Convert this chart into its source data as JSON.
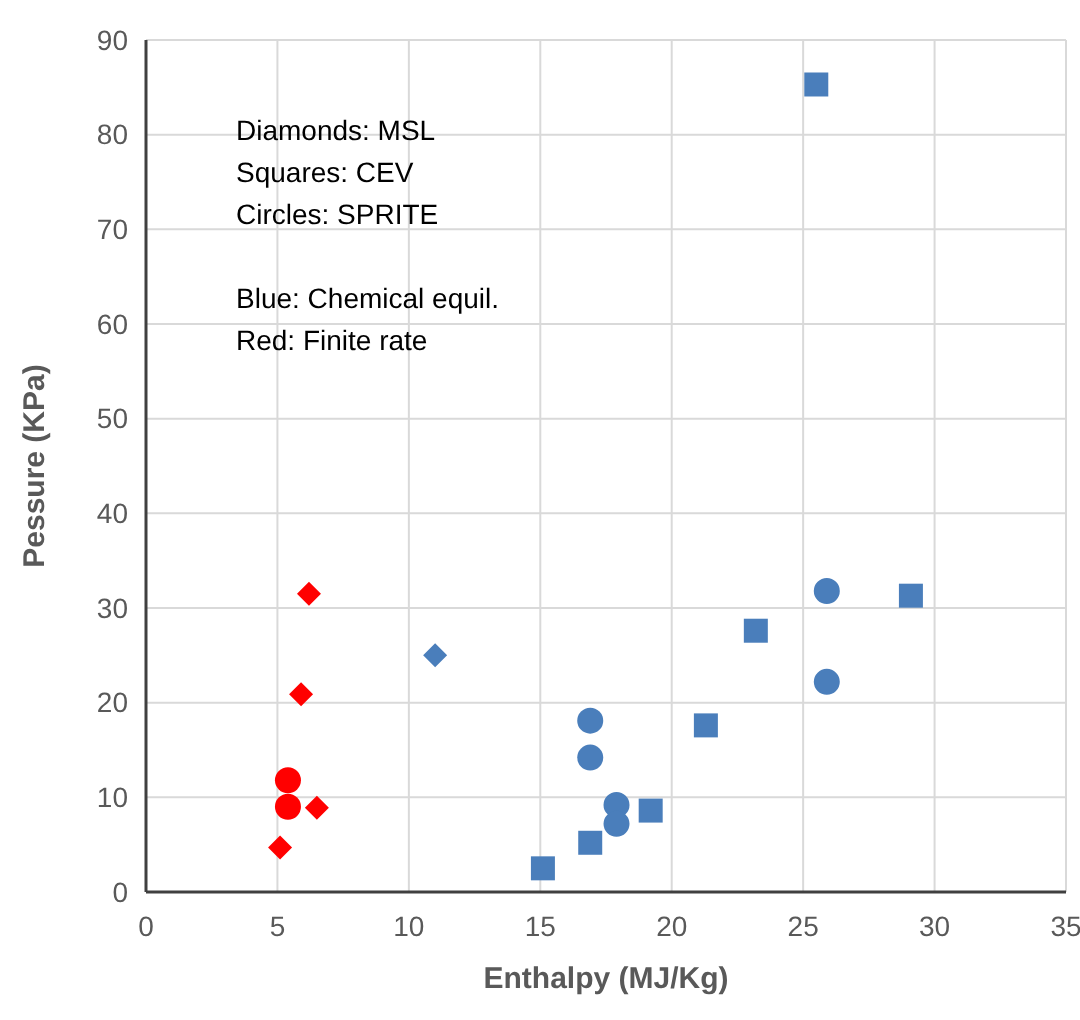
{
  "chart_data": {
    "type": "scatter",
    "xlabel": "Enthalpy (MJ/Kg)",
    "ylabel": "Pessure (KPa)",
    "xlim": [
      0,
      35
    ],
    "xticks": [
      0,
      5,
      10,
      15,
      20,
      25,
      30,
      35
    ],
    "ylim": [
      0,
      90
    ],
    "yticks": [
      0,
      10,
      20,
      30,
      40,
      50,
      60,
      70,
      80,
      90
    ],
    "grid": true,
    "annotations": [
      "Diamonds: MSL\nSquares: CEV\nCircles: SPRITE",
      "Blue: Chemical equil.\nRed: Finite rate"
    ],
    "series": [
      {
        "color": "#ff0000",
        "marker": "diamond",
        "x": [
          6.2,
          5.9,
          6.5,
          5.1
        ],
        "values": [
          31.5,
          20.9,
          8.9,
          4.7
        ]
      },
      {
        "color": "#ff0000",
        "marker": "circle",
        "x": [
          5.4,
          5.4
        ],
        "values": [
          11.8,
          9.0
        ]
      },
      {
        "color": "#4a7ebb",
        "marker": "diamond",
        "x": [
          11.0
        ],
        "values": [
          25.0
        ]
      },
      {
        "color": "#4a7ebb",
        "marker": "circle",
        "x": [
          16.9,
          16.9,
          17.9,
          17.9,
          25.9,
          25.9
        ],
        "values": [
          18.1,
          14.2,
          9.2,
          7.2,
          31.8,
          22.2
        ]
      },
      {
        "color": "#4a7ebb",
        "marker": "square",
        "x": [
          15.1,
          16.9,
          19.2,
          21.3,
          23.2,
          25.5,
          29.1
        ],
        "values": [
          2.5,
          5.2,
          8.6,
          17.6,
          27.6,
          85.3,
          31.3
        ]
      }
    ]
  }
}
